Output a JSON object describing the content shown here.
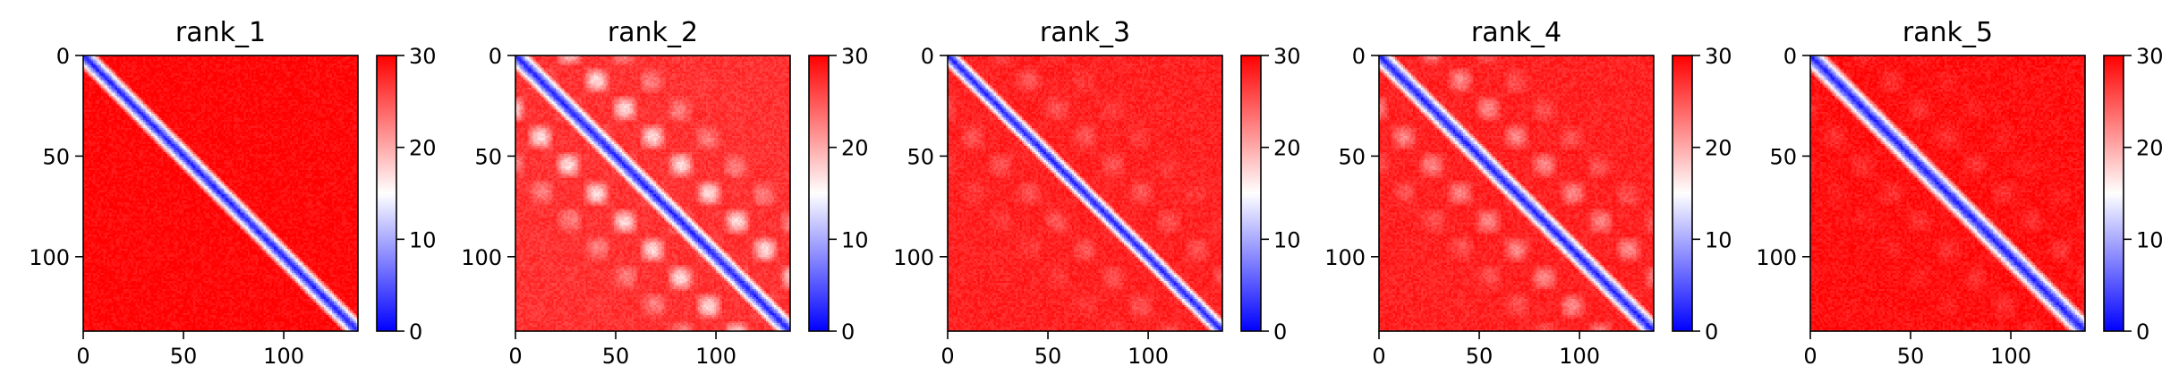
{
  "chart_data": [
    {
      "type": "heatmap",
      "title": "rank_1",
      "x_range": [
        0,
        137
      ],
      "y_range": [
        0,
        137
      ],
      "y_inverted": true,
      "xticks": [
        0,
        50,
        100
      ],
      "yticks": [
        0,
        50,
        100
      ],
      "colorbar": {
        "range": [
          0,
          30
        ],
        "ticks": [
          0,
          10,
          20,
          30
        ],
        "cmap": "bwr"
      },
      "pattern": {
        "diagonal_value": 2,
        "near_band_width": 8,
        "background_value": 29.5,
        "off_diagonal_wave": 0
      }
    },
    {
      "type": "heatmap",
      "title": "rank_2",
      "x_range": [
        0,
        137
      ],
      "y_range": [
        0,
        137
      ],
      "y_inverted": true,
      "xticks": [
        0,
        50,
        100
      ],
      "yticks": [
        0,
        50,
        100
      ],
      "colorbar": {
        "range": [
          0,
          30
        ],
        "ticks": [
          0,
          10,
          20,
          30
        ],
        "cmap": "bwr"
      },
      "pattern": {
        "diagonal_value": 2,
        "near_band_width": 8,
        "background_value": 27,
        "off_diagonal_wave": 10
      }
    },
    {
      "type": "heatmap",
      "title": "rank_3",
      "x_range": [
        0,
        137
      ],
      "y_range": [
        0,
        137
      ],
      "y_inverted": true,
      "xticks": [
        0,
        50,
        100
      ],
      "yticks": [
        0,
        50,
        100
      ],
      "colorbar": {
        "range": [
          0,
          30
        ],
        "ticks": [
          0,
          10,
          20,
          30
        ],
        "cmap": "bwr"
      },
      "pattern": {
        "diagonal_value": 2,
        "near_band_width": 7,
        "background_value": 28,
        "off_diagonal_wave": 3
      }
    },
    {
      "type": "heatmap",
      "title": "rank_4",
      "x_range": [
        0,
        137
      ],
      "y_range": [
        0,
        137
      ],
      "y_inverted": true,
      "xticks": [
        0,
        50,
        100
      ],
      "yticks": [
        0,
        50,
        100
      ],
      "colorbar": {
        "range": [
          0,
          30
        ],
        "ticks": [
          0,
          10,
          20,
          30
        ],
        "cmap": "bwr"
      },
      "pattern": {
        "diagonal_value": 2,
        "near_band_width": 8,
        "background_value": 28,
        "off_diagonal_wave": 6
      }
    },
    {
      "type": "heatmap",
      "title": "rank_5",
      "x_range": [
        0,
        137
      ],
      "y_range": [
        0,
        137
      ],
      "y_inverted": true,
      "xticks": [
        0,
        50,
        100
      ],
      "yticks": [
        0,
        50,
        100
      ],
      "colorbar": {
        "range": [
          0,
          30
        ],
        "ticks": [
          0,
          10,
          20,
          30
        ],
        "cmap": "bwr"
      },
      "pattern": {
        "diagonal_value": 2,
        "near_band_width": 9,
        "background_value": 29,
        "off_diagonal_wave": 2
      }
    }
  ]
}
